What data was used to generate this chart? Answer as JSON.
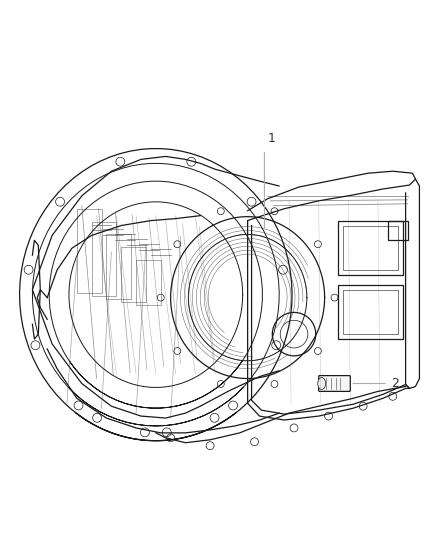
{
  "background_color": "#ffffff",
  "fig_width": 4.38,
  "fig_height": 5.33,
  "dpi": 100,
  "label_1": "1",
  "label_2": "2",
  "line_color": "#aaaaaa",
  "text_color": "#333333",
  "font_size_labels": 9,
  "drawing_color": "#1a1a1a",
  "light_gray": "#cccccc",
  "mid_gray": "#888888"
}
